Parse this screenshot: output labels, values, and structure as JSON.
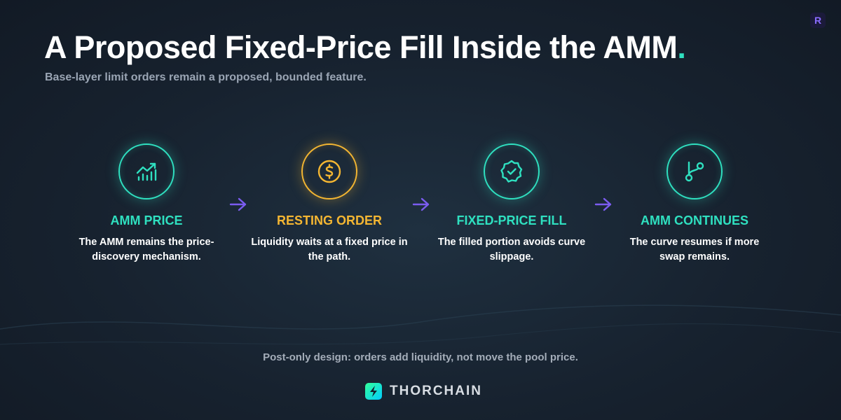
{
  "header": {
    "title": "A Proposed Fixed-Price Fill Inside the AMM",
    "title_mark": ".",
    "subtitle": "Base-layer limit orders remain a proposed, bounded feature.",
    "badge": "R"
  },
  "steps": [
    {
      "label": "AMM PRICE",
      "description": "The AMM remains the price-discovery mechanism."
    },
    {
      "label": "RESTING ORDER",
      "description": "Liquidity waits at a fixed price in the path."
    },
    {
      "label": "FIXED-PRICE FILL",
      "description": "The filled portion avoids curve slippage."
    },
    {
      "label": "AMM CONTINUES",
      "description": "The curve resumes if more swap remains."
    }
  ],
  "footer": {
    "note": "Post-only design: orders add liquidity, not move the pool price.",
    "brand": "THORCHAIN"
  }
}
